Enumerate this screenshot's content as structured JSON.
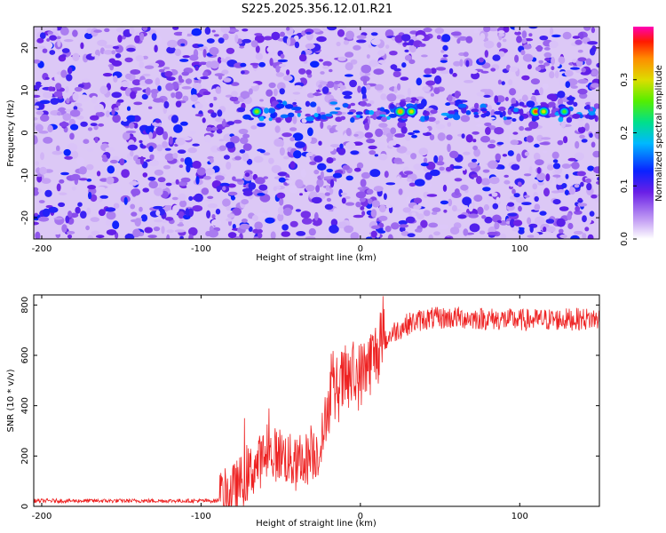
{
  "title": "S225.2025.356.12.01.R21",
  "chart_data": [
    {
      "type": "heatmap",
      "name": "spectrogram",
      "xlabel": "Height of straight line (km)",
      "ylabel": "Frequency (Hz)",
      "xlim": [
        -205,
        150
      ],
      "ylim": [
        -25,
        25
      ],
      "xticks": [
        -200,
        -100,
        0,
        100
      ],
      "yticks": [
        -20,
        -10,
        0,
        10,
        20
      ],
      "colorbar": {
        "label": "Normalized spectral amplitude",
        "range": [
          0,
          0.4
        ],
        "ticks": [
          "0.0",
          "0.1",
          "0.2",
          "0.3"
        ]
      },
      "signal": {
        "frequency_hz": 5,
        "start_km": -75,
        "hotspots": [
          {
            "x": -65,
            "y": 5,
            "amp": 0.28
          },
          {
            "x": 25,
            "y": 5,
            "amp": 0.33
          },
          {
            "x": 32,
            "y": 5,
            "amp": 0.3
          },
          {
            "x": 110,
            "y": 5,
            "amp": 0.36
          },
          {
            "x": 115,
            "y": 5,
            "amp": 0.3
          },
          {
            "x": 128,
            "y": 5,
            "amp": 0.25
          }
        ]
      }
    },
    {
      "type": "line",
      "name": "snr",
      "xlabel": "Height of straight line (km)",
      "ylabel": "SNR (10 * v/v)",
      "xlim": [
        -205,
        150
      ],
      "ylim": [
        0,
        840
      ],
      "xticks": [
        -200,
        -100,
        0,
        100
      ],
      "yticks": [
        0,
        200,
        400,
        600,
        800
      ],
      "color": "#ee2222",
      "profile": {
        "x": [
          -205,
          -90,
          -80,
          -60,
          -50,
          -40,
          -25,
          -20,
          -10,
          0,
          10,
          20,
          30,
          40,
          60,
          100,
          150
        ],
        "y": [
          22,
          22,
          60,
          200,
          210,
          160,
          230,
          420,
          500,
          520,
          610,
          690,
          725,
          745,
          750,
          740,
          745
        ]
      }
    }
  ]
}
